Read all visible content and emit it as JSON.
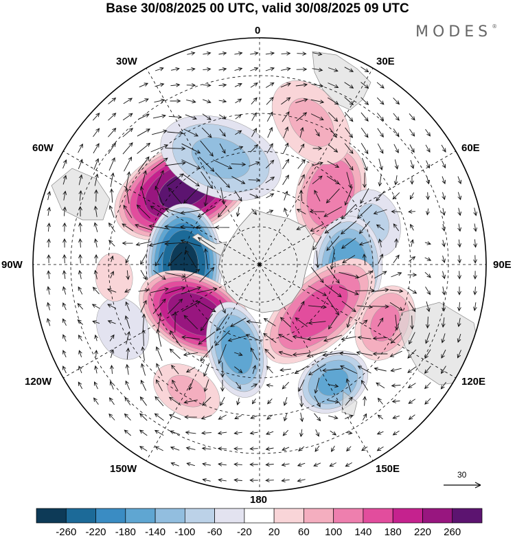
{
  "title": "Base 30/08/2025 00 UTC, valid 30/08/2025 09 UTC",
  "brand": "MODES",
  "brand_mark": "®",
  "longitude_labels": {
    "lon_0": "0",
    "lon_30e": "30E",
    "lon_60e": "60E",
    "lon_90e": "90E",
    "lon_120e": "120E",
    "lon_150e": "150E",
    "lon_180": "180",
    "lon_150w": "150W",
    "lon_120w": "120W",
    "lon_90w": "90W",
    "lon_60w": "60W",
    "lon_30w": "30W"
  },
  "reference_vector": "30",
  "colorbar": {
    "colors": [
      "#0d3a57",
      "#1c6a98",
      "#3a8cc3",
      "#5fa6d2",
      "#92bedf",
      "#bcd2e8",
      "#e3e3f0",
      "#ffffff",
      "#f9d5d8",
      "#f4aebf",
      "#ee7fae",
      "#e24d9d",
      "#c5228e",
      "#98167f",
      "#5c1470"
    ],
    "labels": [
      "-260",
      "-220",
      "-180",
      "-140",
      "-100",
      "-60",
      "-20",
      "20",
      "60",
      "100",
      "140",
      "180",
      "220",
      "260"
    ]
  },
  "anomaly_centers": [
    {
      "lon": -45,
      "lat": -48,
      "value": 270,
      "radius_deg": 15,
      "elong": 1.7,
      "angle_deg": 20
    },
    {
      "lon": -90,
      "lat": -60,
      "value": -270,
      "radius_deg": 13,
      "elong": 1.6,
      "angle_deg": 0
    },
    {
      "lon": -128,
      "lat": -58,
      "value": 250,
      "radius_deg": 13,
      "elong": 1.6,
      "angle_deg": -25
    },
    {
      "lon": -165,
      "lat": -55,
      "value": -160,
      "radius_deg": 10,
      "elong": 1.7,
      "angle_deg": 60
    },
    {
      "lon": -20,
      "lat": -45,
      "value": -110,
      "radius_deg": 14,
      "elong": 1.6,
      "angle_deg": 40
    },
    {
      "lon": 45,
      "lat": -50,
      "value": 140,
      "radius_deg": 12,
      "elong": 1.5,
      "angle_deg": 60
    },
    {
      "lon": 70,
      "lat": -42,
      "value": -70,
      "radius_deg": 10,
      "elong": 1.3,
      "angle_deg": 0
    },
    {
      "lon": 92,
      "lat": -55,
      "value": -170,
      "radius_deg": 12,
      "elong": 1.5,
      "angle_deg": 0
    },
    {
      "lon": 128,
      "lat": -60,
      "value": 160,
      "radius_deg": 12,
      "elong": 2.0,
      "angle_deg": 10
    },
    {
      "lon": 115,
      "lat": -35,
      "value": 110,
      "radius_deg": 10,
      "elong": 1.4,
      "angle_deg": 0
    },
    {
      "lon": 148,
      "lat": -35,
      "value": -150,
      "radius_deg": 10,
      "elong": 1.3,
      "angle_deg": 0
    },
    {
      "lon": 20,
      "lat": -30,
      "value": 70,
      "radius_deg": 12,
      "elong": 1.5,
      "angle_deg": 30
    },
    {
      "lon": -150,
      "lat": -32,
      "value": 70,
      "radius_deg": 9,
      "elong": 1.5,
      "angle_deg": 0
    },
    {
      "lon": -115,
      "lat": -30,
      "value": -50,
      "radius_deg": 10,
      "elong": 1.3,
      "angle_deg": 0
    },
    {
      "lon": -95,
      "lat": -32,
      "value": 40,
      "radius_deg": 8,
      "elong": 1.3,
      "angle_deg": 0
    }
  ]
}
